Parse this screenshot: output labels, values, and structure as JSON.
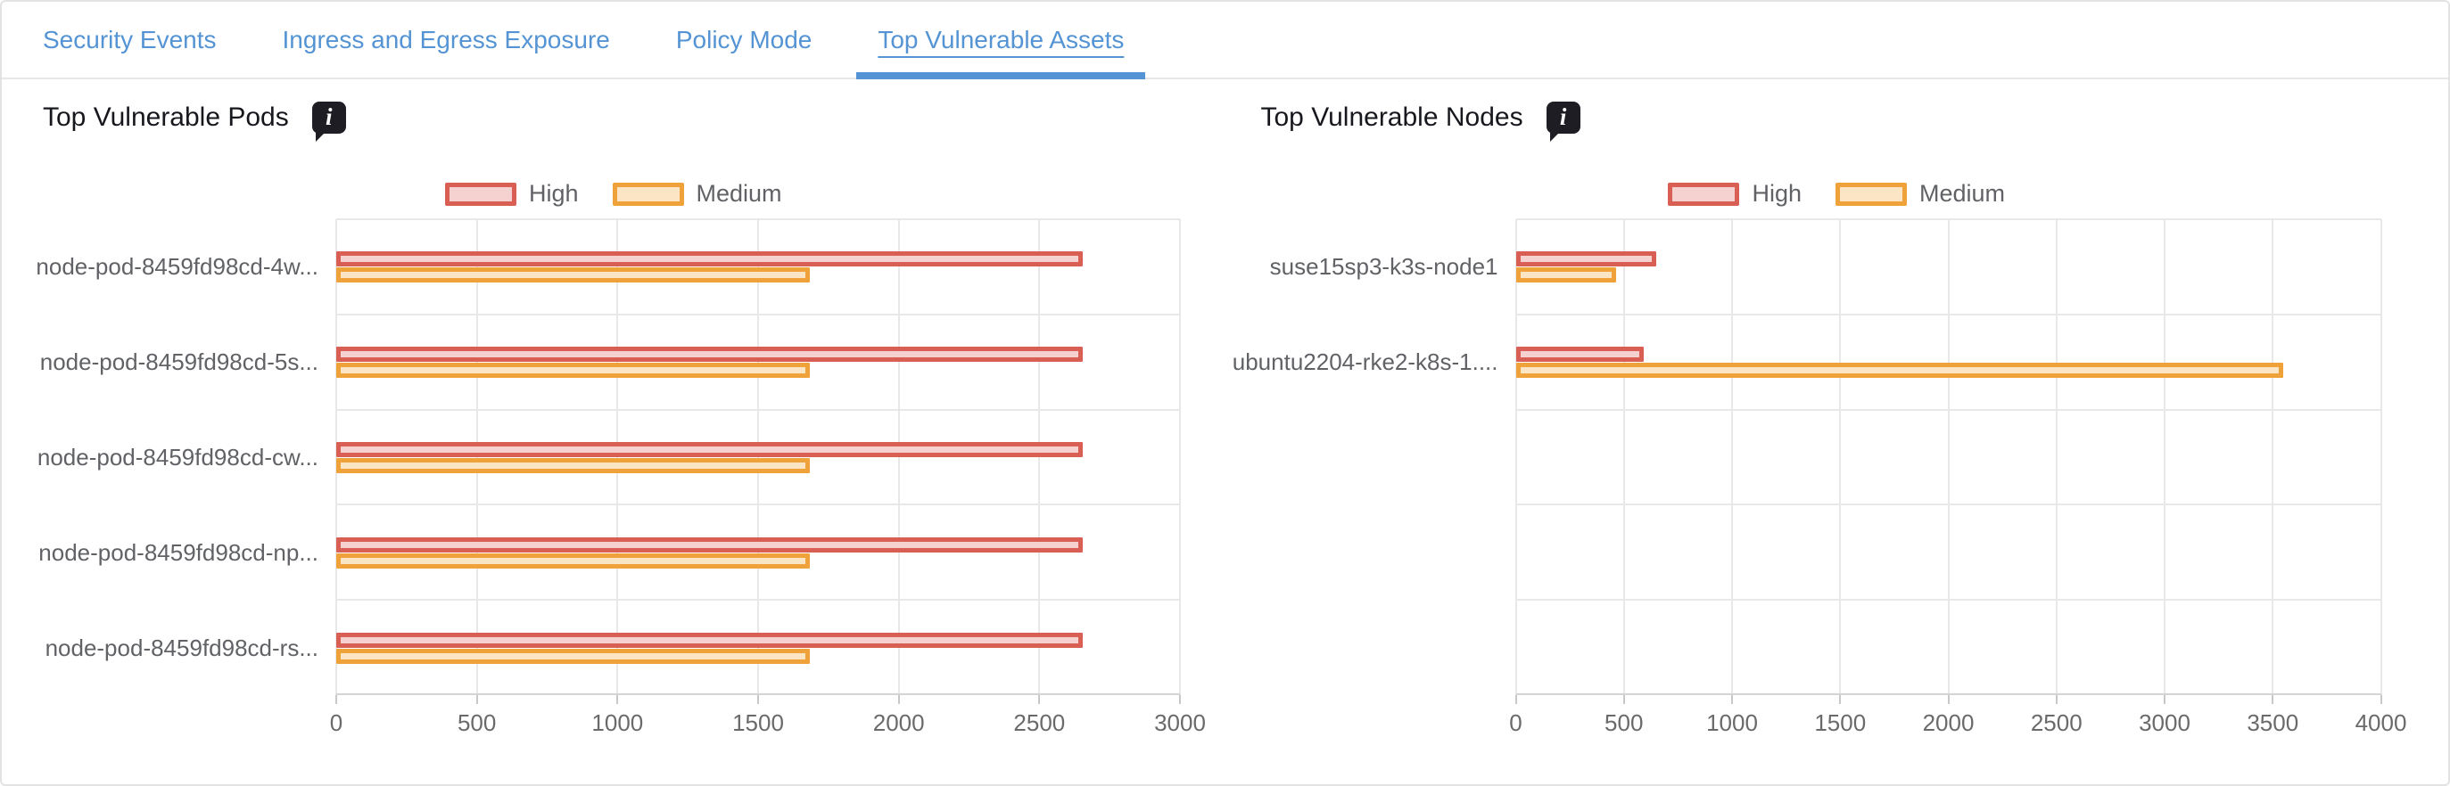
{
  "tabs": {
    "items": [
      {
        "label": "Security Events",
        "active": false
      },
      {
        "label": "Ingress and Egress Exposure",
        "active": false
      },
      {
        "label": "Policy Mode",
        "active": false
      },
      {
        "label": "Top Vulnerable Assets",
        "active": true
      }
    ]
  },
  "icons": {
    "info_glyph": "i"
  },
  "colors": {
    "tab_blue": "#5594d4",
    "high_border": "#d95f55",
    "high_fill": "#f5d2cf",
    "medium_border": "#f0a23a",
    "medium_fill": "#fce5c4",
    "grid_line": "#e8e8e8",
    "axis_line": "#d4d4d4",
    "icon_bg": "#1d1d23",
    "card_border": "#e3e3e3"
  },
  "chart_data": [
    {
      "type": "bar",
      "orientation": "horizontal",
      "title": "Top Vulnerable Pods",
      "legend": [
        "High",
        "Medium"
      ],
      "legend_position": "top-center",
      "grid": true,
      "categories": [
        "node-pod-8459fd98cd-4w...",
        "node-pod-8459fd98cd-5s...",
        "node-pod-8459fd98cd-cw...",
        "node-pod-8459fd98cd-np...",
        "node-pod-8459fd98cd-rs..."
      ],
      "series": [
        {
          "name": "High",
          "values": [
            2655,
            2655,
            2655,
            2655,
            2655
          ]
        },
        {
          "name": "Medium",
          "values": [
            1685,
            1685,
            1685,
            1685,
            1685
          ]
        }
      ],
      "xlim": [
        0,
        3000
      ],
      "x_ticks": [
        0,
        500,
        1000,
        1500,
        2000,
        2500,
        3000
      ]
    },
    {
      "type": "bar",
      "orientation": "horizontal",
      "title": "Top Vulnerable Nodes",
      "legend": [
        "High",
        "Medium"
      ],
      "legend_position": "top-center",
      "grid": true,
      "categories": [
        "suse15sp3-k3s-node1",
        "ubuntu2204-rke2-k8s-1...."
      ],
      "series": [
        {
          "name": "High",
          "values": [
            650,
            590
          ]
        },
        {
          "name": "Medium",
          "values": [
            465,
            3550
          ]
        }
      ],
      "xlim": [
        0,
        4000
      ],
      "x_ticks": [
        0,
        500,
        1000,
        1500,
        2000,
        2500,
        3000,
        3500,
        4000
      ]
    }
  ]
}
